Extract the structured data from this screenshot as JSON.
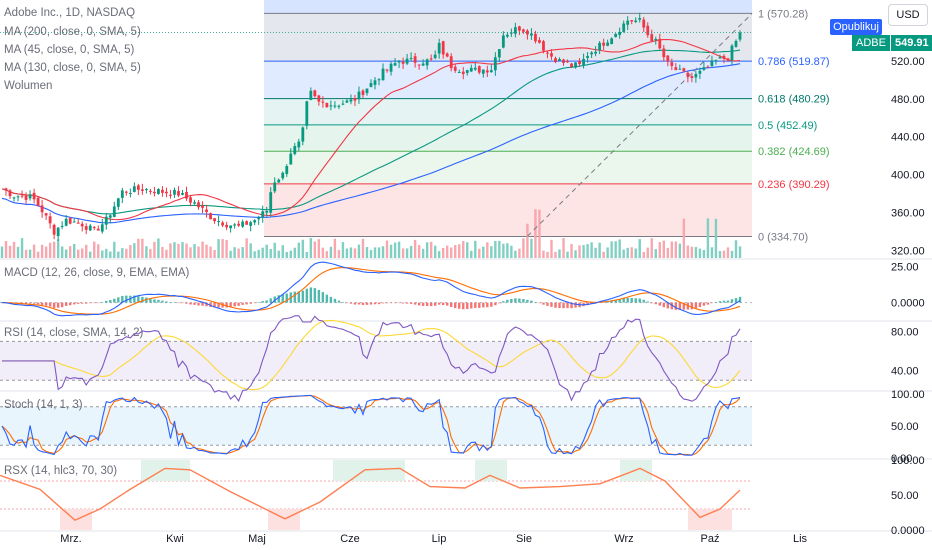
{
  "header": {
    "title": "Adobe Inc., 1D, NASDAQ",
    "indicators": [
      "MA (200, close, 0, SMA, 5)",
      "MA (45, close, 0, SMA, 5)",
      "MA (130, close, 0, SMA, 5)",
      "Wolumen"
    ]
  },
  "controls": {
    "currency": "USD",
    "publish": "Opublikuj",
    "ticker": "ADBE",
    "last_price": "549.91"
  },
  "colors": {
    "up": "#089981",
    "down": "#f23645",
    "ma200": "#2962ff",
    "ma45": "#f23645",
    "ma130": "#089981",
    "macd": "#2962ff",
    "signal": "#ff6d00",
    "rsi": "#7e57c2",
    "rsi_ma": "#fdd835",
    "stoch_k": "#2962ff",
    "stoch_d": "#ff6d00",
    "rsx": "#ff7f50"
  },
  "chart_data": [
    {
      "type": "candlestick",
      "name": "price",
      "y_ticks": [
        "520.00",
        "480.00",
        "440.00",
        "400.00",
        "360.00",
        "320.00"
      ],
      "ylim": [
        312,
        578
      ],
      "x_ticks": [
        "Mrz.",
        "Kwi",
        "Maj",
        "Cze",
        "Lip",
        "Sie",
        "Wrz",
        "Paź",
        "Lis"
      ],
      "fib_levels": [
        {
          "label": "1 (570.28)",
          "value": 570.28,
          "color": "#787b86",
          "fill": "#e0e3eb"
        },
        {
          "label": "0.786 (519.87)",
          "value": 519.87,
          "color": "#2962ff",
          "fill": "#dbe7ff"
        },
        {
          "label": "0.618 (480.29)",
          "value": 480.29,
          "color": "#00796b",
          "fill": "#e0f2f1"
        },
        {
          "label": "0.5 (452.49)",
          "value": 452.49,
          "color": "#089981",
          "fill": "#e0f2e9"
        },
        {
          "label": "0.382 (424.69)",
          "value": 424.69,
          "color": "#4caf50",
          "fill": "#e8f5e9"
        },
        {
          "label": "0.236 (390.29)",
          "value": 390.29,
          "color": "#f23645",
          "fill": "#fde0e0"
        },
        {
          "label": "0 (334.70)",
          "value": 334.7,
          "color": "#787b86",
          "fill": "#fde0e0"
        }
      ]
    },
    {
      "type": "line",
      "name": "MACD (12, 26, close, 9, EMA, EMA)",
      "y_ticks": [
        "25.00",
        "0.0000"
      ],
      "ylim": [
        -12,
        28
      ]
    },
    {
      "type": "line",
      "name": "RSI (14, close, SMA, 14, 2)",
      "y_ticks": [
        "80.00",
        "40.00"
      ],
      "ylim": [
        20,
        90
      ]
    },
    {
      "type": "line",
      "name": "Stoch (14, 1, 3)",
      "y_ticks": [
        "100.00",
        "50.00",
        "0.00"
      ],
      "ylim": [
        0,
        100
      ]
    },
    {
      "type": "line",
      "name": "RSX (14, hlc3, 70, 30)",
      "y_ticks": [
        "100.00",
        "50.00",
        "0.0000"
      ],
      "ylim": [
        0,
        100
      ]
    }
  ]
}
